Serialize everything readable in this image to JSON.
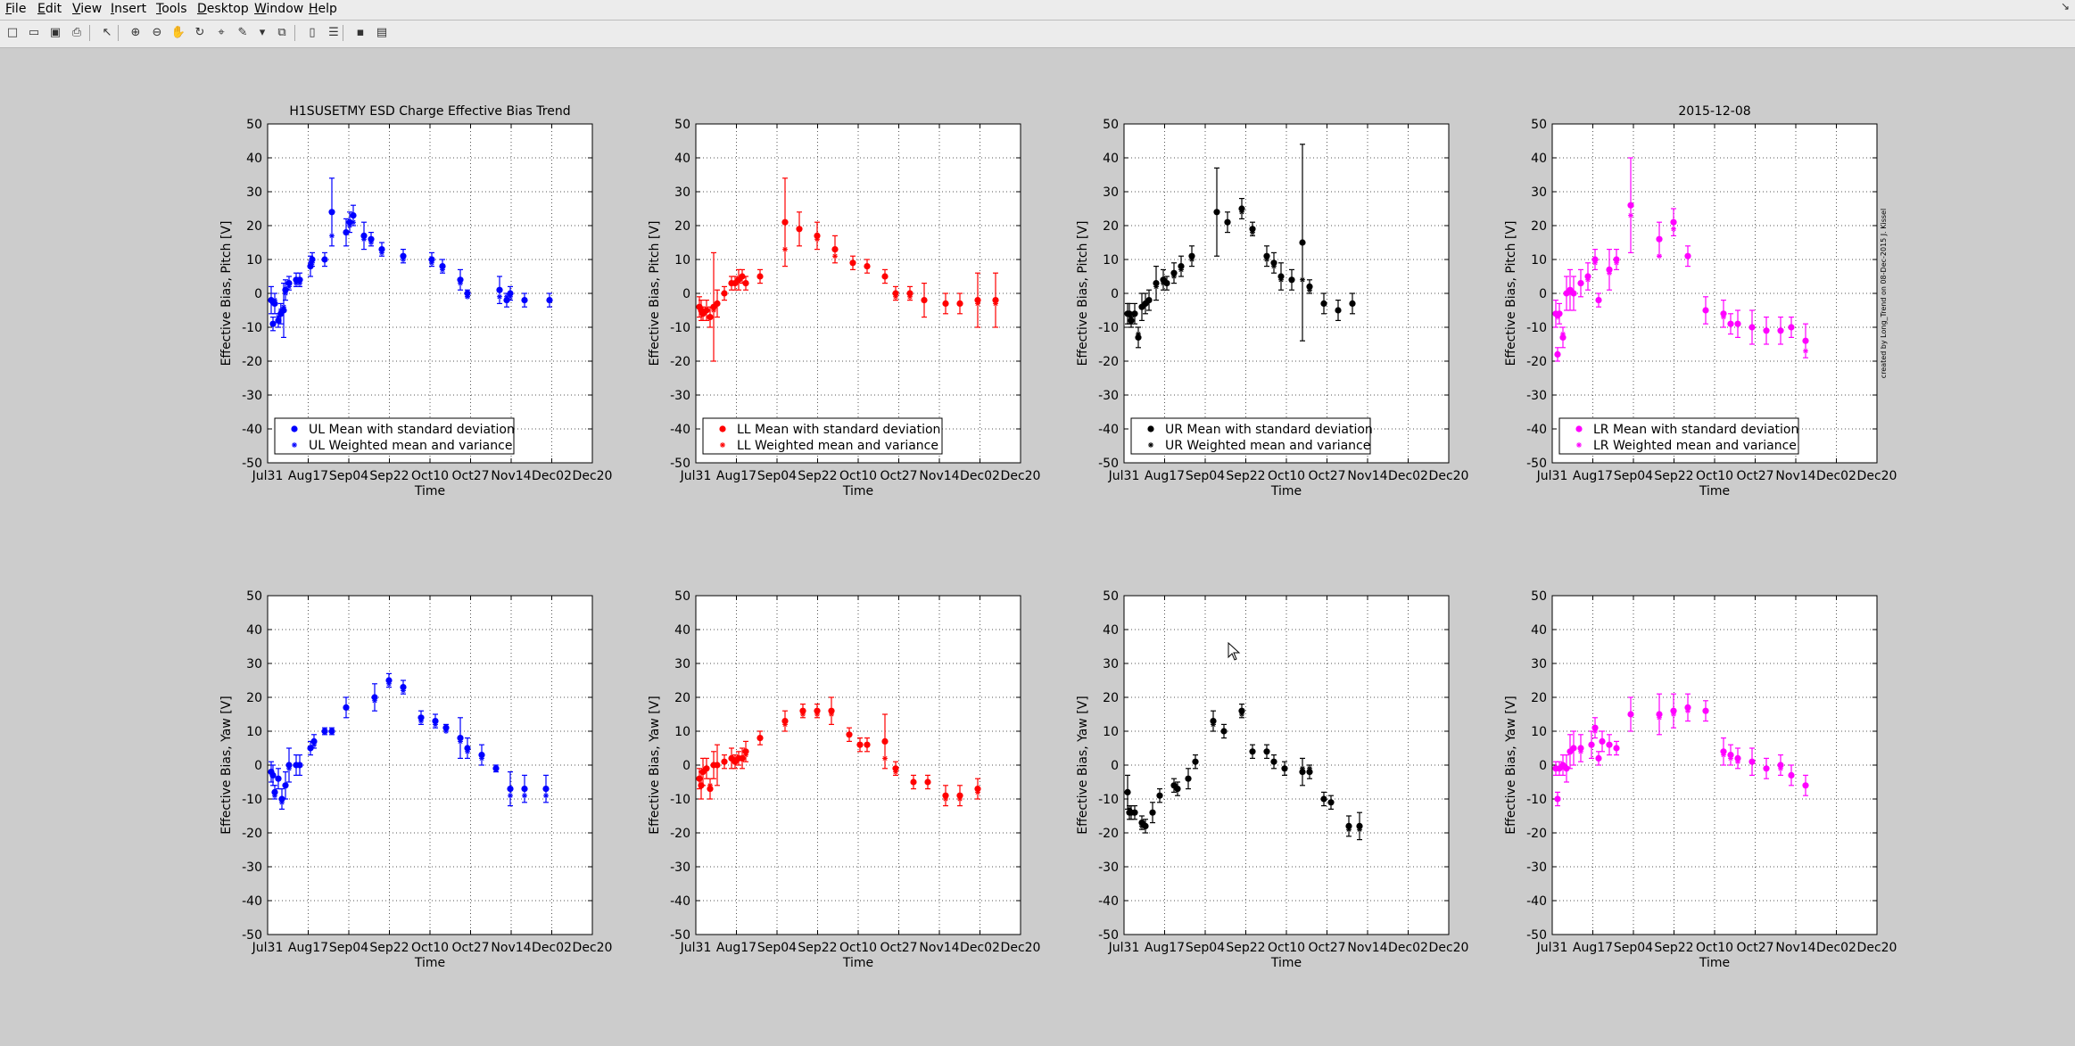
{
  "menu": [
    "File",
    "Edit",
    "View",
    "Insert",
    "Tools",
    "Desktop",
    "Window",
    "Help"
  ],
  "toolbar": [
    {
      "name": "new-figure-icon",
      "glyph": "□"
    },
    {
      "name": "open-file-icon",
      "glyph": "▭"
    },
    {
      "name": "save-icon",
      "glyph": "▣"
    },
    {
      "name": "print-icon",
      "glyph": "⎙"
    },
    {
      "name": "edit-plot-arrow-icon",
      "glyph": "↖"
    },
    {
      "name": "zoom-in-icon",
      "glyph": "⊕"
    },
    {
      "name": "zoom-out-icon",
      "glyph": "⊖"
    },
    {
      "name": "pan-hand-icon",
      "glyph": "✋"
    },
    {
      "name": "rotate-3d-icon",
      "glyph": "↻"
    },
    {
      "name": "data-cursor-icon",
      "glyph": "⌖"
    },
    {
      "name": "brush-icon",
      "glyph": "✎"
    },
    {
      "name": "brush-dropdown-icon",
      "glyph": "▾"
    },
    {
      "name": "link-plot-icon",
      "glyph": "⧉"
    },
    {
      "name": "insert-colorbar-icon",
      "glyph": "▯"
    },
    {
      "name": "insert-legend-icon",
      "glyph": "☰"
    },
    {
      "name": "hide-plot-tools-icon",
      "glyph": "▪"
    },
    {
      "name": "show-plot-tools-icon",
      "glyph": "▤"
    }
  ],
  "titles": {
    "left": "H1SUSETMY ESD Charge Effective Bias Trend",
    "right": "2015-12-08"
  },
  "side_note": "created by Long_Trend on 08-Dec-2015 J. Kissel",
  "colors": {
    "UL": "#0000ff",
    "LL": "#ff0000",
    "UR": "#000000",
    "LR": "#ff00ff"
  },
  "chart_data": [
    {
      "type": "scatter",
      "quadrant": "UL",
      "ylabel": "Effective Bias, Pitch [V]",
      "xlabel": "Time",
      "xticks": [
        "Jul31",
        "Aug17",
        "Sep04",
        "Sep22",
        "Oct10",
        "Oct27",
        "Nov14",
        "Dec02",
        "Dec20"
      ],
      "ylim": [
        -50,
        50
      ],
      "grid": true,
      "legend": [
        "UL Mean with standard deviation",
        "UL Weighted mean and variance"
      ],
      "x": [
        1,
        1.5,
        2,
        3,
        3.7,
        4.5,
        5,
        6,
        8,
        9,
        12,
        12.5,
        16,
        18,
        22,
        23,
        24,
        27,
        29,
        32,
        38,
        46,
        49,
        54,
        56,
        65,
        67,
        68,
        72,
        79
      ],
      "mean": [
        -2,
        -9,
        -3,
        -8,
        -6,
        -5,
        1,
        3,
        4,
        4,
        8,
        10,
        10,
        24,
        18,
        21,
        23,
        17,
        16,
        13,
        11,
        10,
        8,
        4,
        0,
        1,
        -2,
        0,
        -2,
        -2
      ],
      "err": [
        4,
        2,
        3,
        2,
        3,
        8,
        3,
        2,
        2,
        2,
        3,
        2,
        2,
        10,
        4,
        3,
        3,
        4,
        2,
        2,
        2,
        2,
        2,
        3,
        1,
        4,
        2,
        2,
        2,
        2
      ],
      "wmean": [
        -2,
        -3,
        -2,
        -7,
        -5,
        -4,
        0,
        2,
        3,
        3,
        9,
        9,
        10,
        17,
        18,
        20,
        21,
        16,
        15,
        12,
        10,
        9,
        7,
        3,
        -1,
        -1,
        -1,
        -1,
        -2,
        -2
      ]
    },
    {
      "type": "scatter",
      "quadrant": "LL",
      "ylabel": "Effective Bias, Pitch [V]",
      "xlabel": "Time",
      "xticks": [
        "Jul31",
        "Aug17",
        "Sep04",
        "Sep22",
        "Oct10",
        "Oct27",
        "Nov14",
        "Dec02",
        "Dec20"
      ],
      "ylim": [
        -50,
        50
      ],
      "grid": true,
      "legend": [
        "LL Mean with standard deviation",
        "LL Weighted mean and variance"
      ],
      "x": [
        1,
        1.5,
        2,
        3,
        4,
        5,
        6,
        8,
        10,
        11,
        12,
        13,
        14,
        18,
        25,
        29,
        34,
        39,
        44,
        48,
        53,
        56,
        60,
        64,
        70,
        74,
        79,
        84
      ],
      "mean": [
        -4,
        -5,
        -6,
        -5,
        -7,
        -4,
        -3,
        0,
        3,
        3,
        4,
        5,
        3,
        5,
        21,
        19,
        17,
        13,
        9,
        8,
        5,
        0,
        0,
        -2,
        -3,
        -3,
        -2,
        -2
      ],
      "err": [
        3,
        3,
        2,
        3,
        3,
        16,
        4,
        2,
        2,
        2,
        3,
        2,
        2,
        2,
        13,
        5,
        4,
        4,
        2,
        2,
        2,
        2,
        2,
        5,
        3,
        3,
        8,
        8
      ],
      "wmean": [
        -4,
        -5,
        -6,
        -5,
        -7,
        -5,
        -3,
        0,
        3,
        3,
        4,
        5,
        3,
        5,
        13,
        19,
        16,
        11,
        9,
        8,
        5,
        -1,
        -1,
        -2,
        -3,
        -3,
        -3,
        -3
      ]
    },
    {
      "type": "scatter",
      "quadrant": "UR",
      "ylabel": "Effective Bias, Pitch [V]",
      "xlabel": "Time",
      "xticks": [
        "Jul31",
        "Aug17",
        "Sep04",
        "Sep22",
        "Oct10",
        "Oct27",
        "Nov14",
        "Dec02",
        "Dec20"
      ],
      "ylim": [
        -50,
        50
      ],
      "grid": true,
      "legend": [
        "UR Mean with standard deviation",
        "UR Weighted mean and variance"
      ],
      "x": [
        1,
        1.5,
        2,
        3,
        4,
        5,
        6,
        7,
        9,
        11,
        12,
        14,
        16,
        19,
        26,
        29,
        33,
        36,
        40,
        42,
        44,
        47,
        50,
        52,
        56,
        60,
        64
      ],
      "mean": [
        -6,
        -6,
        -8,
        -6,
        -13,
        -4,
        -3,
        -2,
        3,
        4,
        3,
        6,
        8,
        11,
        24,
        21,
        25,
        19,
        11,
        9,
        5,
        4,
        15,
        2,
        -3,
        -5,
        -3
      ],
      "err": [
        3,
        3,
        2,
        3,
        3,
        4,
        3,
        3,
        5,
        3,
        2,
        3,
        3,
        3,
        13,
        3,
        3,
        2,
        3,
        3,
        4,
        3,
        29,
        2,
        3,
        3,
        3
      ],
      "wmean": [
        -6,
        -6,
        -7,
        -6,
        -12,
        -4,
        -3,
        -2,
        2,
        3,
        3,
        5,
        7,
        10,
        24,
        21,
        24,
        18,
        10,
        8,
        4,
        4,
        4,
        1,
        -3,
        -5,
        -3
      ]
    },
    {
      "type": "scatter",
      "quadrant": "LR",
      "ylabel": "Effective Bias, Pitch [V]",
      "xlabel": "Time",
      "xticks": [
        "Jul31",
        "Aug17",
        "Sep04",
        "Sep22",
        "Oct10",
        "Oct27",
        "Nov14",
        "Dec02",
        "Dec20"
      ],
      "ylim": [
        -50,
        50
      ],
      "grid": true,
      "legend": [
        "LR Mean with standard deviation",
        "LR Weighted mean and variance"
      ],
      "x": [
        1,
        1.5,
        2,
        3,
        4,
        5,
        6,
        8,
        10,
        12,
        13,
        16,
        18,
        22,
        30,
        34,
        38,
        43,
        48,
        50,
        52,
        56,
        60,
        64,
        67,
        71
      ],
      "mean": [
        -6,
        -18,
        -6,
        -13,
        0,
        1,
        0,
        3,
        5,
        10,
        -2,
        7,
        10,
        26,
        16,
        21,
        11,
        -5,
        -6,
        -9,
        -9,
        -10,
        -11,
        -11,
        -10,
        -14
      ],
      "err": [
        4,
        2,
        3,
        3,
        5,
        6,
        5,
        4,
        4,
        3,
        2,
        6,
        3,
        14,
        5,
        4,
        3,
        4,
        4,
        3,
        4,
        5,
        4,
        4,
        3,
        5
      ],
      "wmean": [
        -6,
        -7,
        -6,
        -12,
        0,
        0,
        0,
        3,
        4,
        9,
        -2,
        6,
        9,
        23,
        11,
        19,
        11,
        -5,
        -7,
        -9,
        -9,
        -10,
        -11,
        -11,
        -10,
        -17
      ]
    },
    {
      "type": "scatter",
      "quadrant": "UL",
      "ylabel": "Effective Bias, Yaw [V]",
      "xlabel": "Time",
      "xticks": [
        "Jul31",
        "Aug17",
        "Sep04",
        "Sep22",
        "Oct10",
        "Oct27",
        "Nov14",
        "Dec02",
        "Dec20"
      ],
      "ylim": [
        -50,
        50
      ],
      "grid": true,
      "legend": [],
      "x": [
        1,
        1.5,
        2,
        3,
        4,
        5,
        6,
        8,
        9,
        12,
        13,
        16,
        18,
        22,
        30,
        34,
        38,
        43,
        47,
        50,
        54,
        56,
        60,
        64,
        68,
        72,
        78
      ],
      "mean": [
        -2,
        -3,
        -8,
        -4,
        -10,
        -6,
        0,
        0,
        0,
        5,
        7,
        10,
        10,
        17,
        20,
        25,
        23,
        14,
        13,
        11,
        8,
        5,
        3,
        -1,
        -7,
        -7,
        -7
      ],
      "err": [
        3,
        3,
        2,
        3,
        3,
        4,
        5,
        3,
        3,
        2,
        2,
        1,
        1,
        3,
        4,
        2,
        2,
        2,
        2,
        1,
        6,
        3,
        3,
        1,
        5,
        4,
        4
      ],
      "wmean": [
        -2,
        -3,
        -9,
        -4,
        -11,
        -6,
        -1,
        0,
        0,
        5,
        6,
        10,
        10,
        17,
        19,
        24,
        22,
        13,
        12,
        10,
        7,
        4,
        2,
        -1,
        -9,
        -9,
        -9
      ]
    },
    {
      "type": "scatter",
      "quadrant": "LL",
      "ylabel": "Effective Bias, Yaw [V]",
      "xlabel": "Time",
      "xticks": [
        "Jul31",
        "Aug17",
        "Sep04",
        "Sep22",
        "Oct10",
        "Oct27",
        "Nov14",
        "Dec02",
        "Dec20"
      ],
      "ylim": [
        -50,
        50
      ],
      "grid": true,
      "legend": [],
      "x": [
        1,
        1.5,
        2,
        3,
        4,
        5,
        6,
        8,
        10,
        11,
        12,
        13,
        14,
        18,
        25,
        30,
        34,
        38,
        43,
        46,
        48,
        53,
        56,
        61,
        65,
        70,
        74,
        79
      ],
      "mean": [
        -4,
        -6,
        -2,
        -1,
        -7,
        0,
        0,
        1,
        2,
        1,
        2,
        2,
        4,
        8,
        13,
        16,
        16,
        16,
        9,
        6,
        6,
        7,
        -1,
        -5,
        -5,
        -9,
        -9,
        -7
      ],
      "err": [
        3,
        4,
        4,
        3,
        3,
        4,
        6,
        2,
        3,
        2,
        2,
        3,
        3,
        2,
        3,
        2,
        2,
        4,
        2,
        2,
        2,
        8,
        2,
        2,
        2,
        3,
        3,
        3
      ],
      "wmean": [
        -4,
        -6,
        -2,
        -1,
        -6,
        0,
        0,
        1,
        2,
        1,
        2,
        2,
        3,
        8,
        12,
        15,
        15,
        15,
        9,
        6,
        6,
        2,
        -2,
        -5,
        -5,
        -10,
        -10,
        -8
      ]
    },
    {
      "type": "scatter",
      "quadrant": "UR",
      "ylabel": "Effective Bias, Yaw [V]",
      "xlabel": "Time",
      "xticks": [
        "Jul31",
        "Aug17",
        "Sep04",
        "Sep22",
        "Oct10",
        "Oct27",
        "Nov14",
        "Dec02",
        "Dec20"
      ],
      "ylim": [
        -50,
        50
      ],
      "grid": true,
      "legend": [],
      "x": [
        1,
        1.5,
        2,
        3,
        5,
        6,
        8,
        10,
        14,
        15,
        18,
        20,
        25,
        28,
        33,
        36,
        40,
        42,
        45,
        50,
        52,
        56,
        58,
        63,
        66
      ],
      "mean": [
        -8,
        -14,
        -14,
        -14,
        -17,
        -18,
        -14,
        -9,
        -6,
        -7,
        -4,
        1,
        13,
        10,
        16,
        4,
        4,
        1,
        -1,
        -2,
        -2,
        -10,
        -11,
        -18,
        -18
      ],
      "err": [
        5,
        2,
        2,
        2,
        2,
        2,
        3,
        2,
        2,
        2,
        3,
        2,
        3,
        2,
        2,
        2,
        2,
        2,
        2,
        4,
        2,
        2,
        2,
        3,
        4
      ],
      "wmean": [
        -8,
        -13,
        -14,
        -14,
        -18,
        -18,
        -14,
        -9,
        -6,
        -7,
        -4,
        1,
        12,
        10,
        15,
        4,
        4,
        1,
        -1,
        -1,
        -1,
        -10,
        -11,
        -19,
        -19
      ]
    },
    {
      "type": "scatter",
      "quadrant": "LR",
      "ylabel": "Effective Bias, Yaw [V]",
      "xlabel": "Time",
      "xticks": [
        "Jul31",
        "Aug17",
        "Sep04",
        "Sep22",
        "Oct10",
        "Oct27",
        "Nov14",
        "Dec02",
        "Dec20"
      ],
      "ylim": [
        -50,
        50
      ],
      "grid": true,
      "legend": [],
      "x": [
        1,
        1.5,
        2,
        3,
        4,
        5,
        6,
        8,
        11,
        12,
        13,
        14,
        16,
        18,
        22,
        30,
        34,
        38,
        43,
        48,
        50,
        52,
        56,
        60,
        64,
        67,
        71
      ],
      "mean": [
        -1,
        -10,
        -1,
        0,
        -1,
        4,
        5,
        5,
        6,
        11,
        2,
        7,
        6,
        5,
        15,
        15,
        16,
        17,
        16,
        4,
        3,
        2,
        1,
        -1,
        0,
        -3,
        -6
      ],
      "err": [
        2,
        2,
        2,
        3,
        4,
        5,
        5,
        4,
        4,
        3,
        2,
        3,
        3,
        2,
        5,
        6,
        5,
        4,
        3,
        4,
        3,
        3,
        4,
        3,
        3,
        3,
        3
      ],
      "wmean": [
        -1,
        -10,
        -1,
        0,
        -1,
        4,
        5,
        4,
        6,
        10,
        2,
        7,
        6,
        5,
        15,
        14,
        15,
        16,
        16,
        3,
        2,
        1,
        1,
        -1,
        -1,
        -3,
        -6
      ]
    }
  ]
}
